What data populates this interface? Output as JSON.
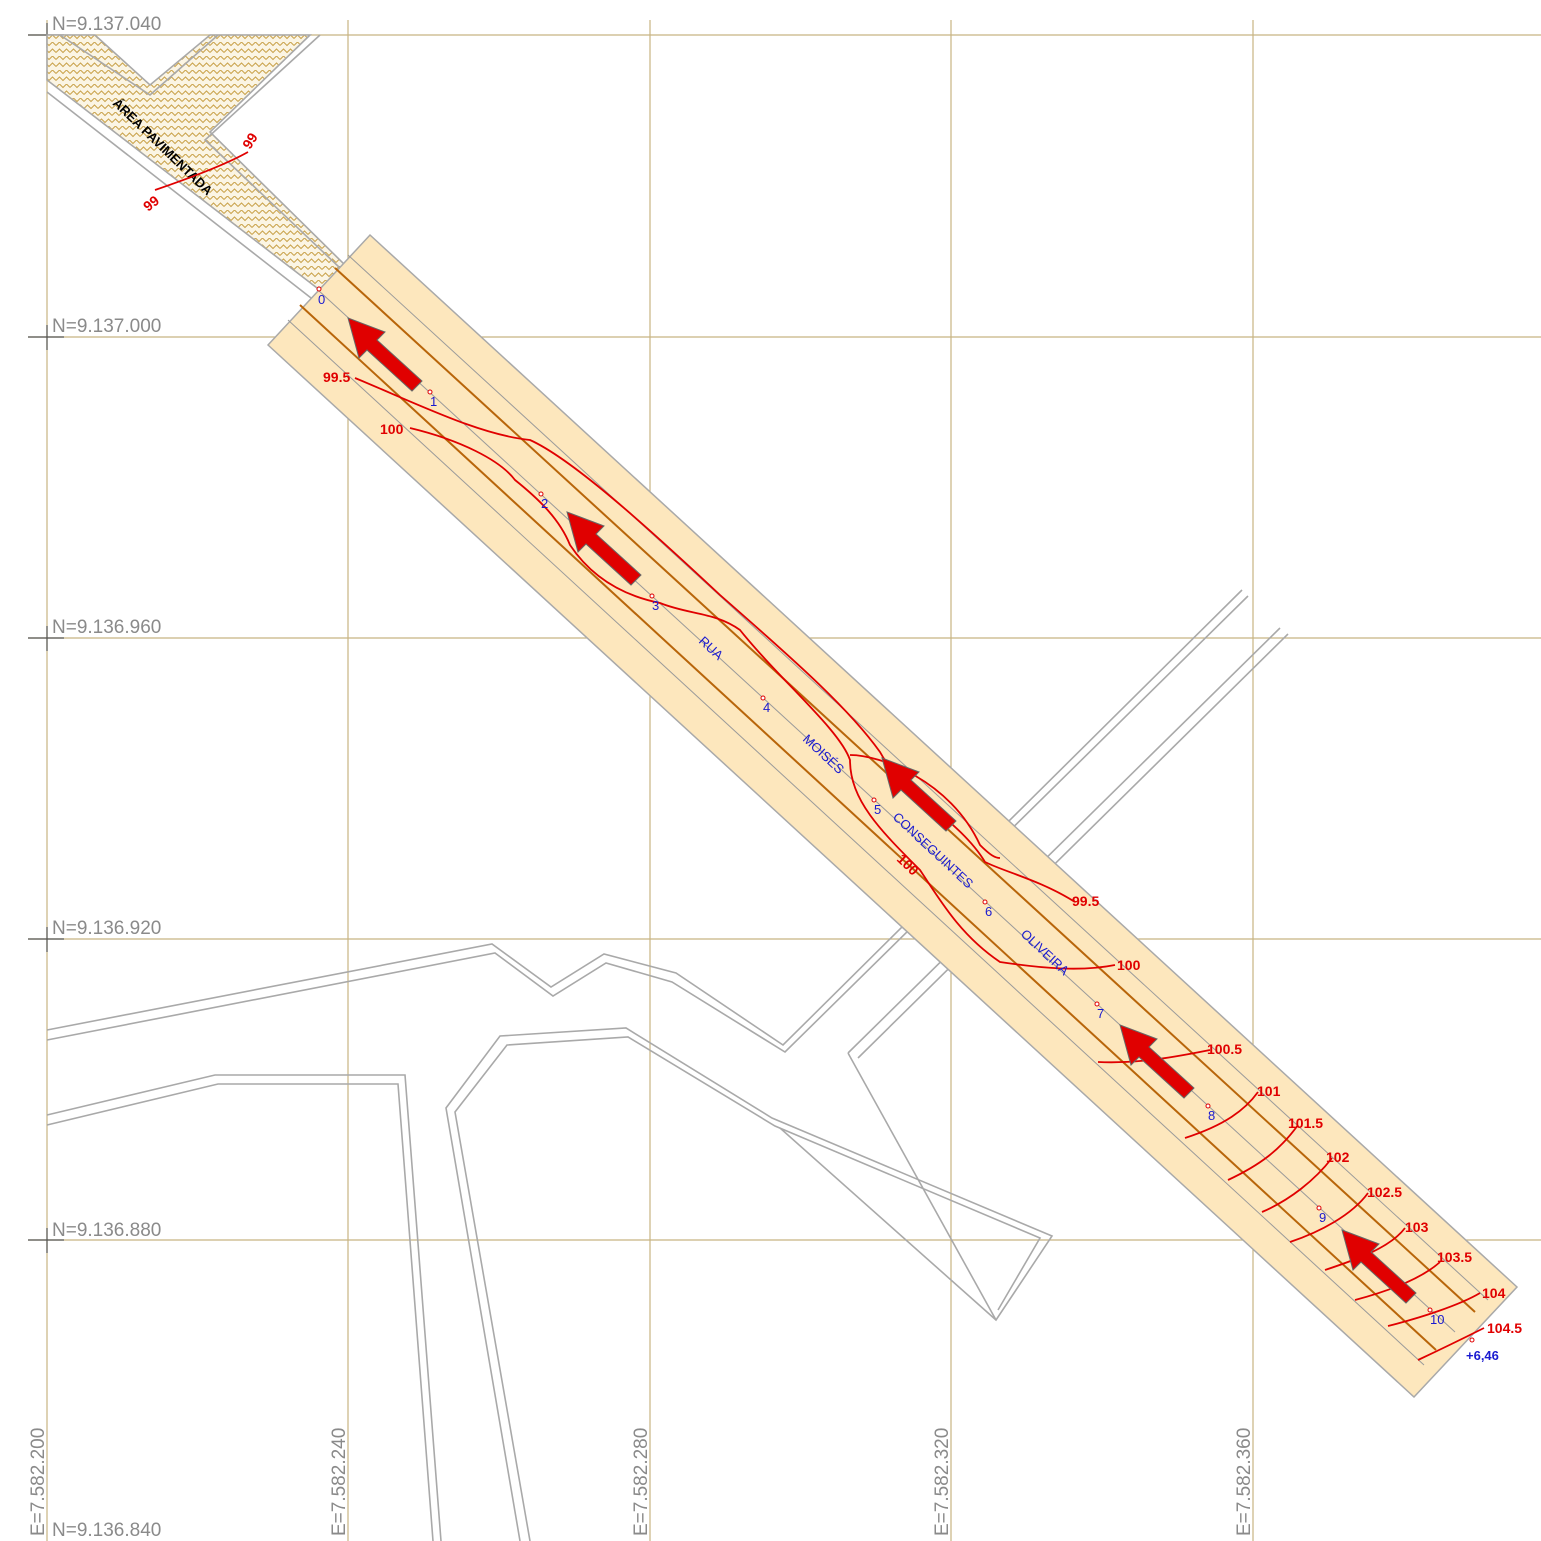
{
  "grid": {
    "northing_labels": [
      "N=9.137.040",
      "N=9.137.000",
      "N=9.136.960",
      "N=9.136.920",
      "N=9.136.880",
      "N=9.136.840"
    ],
    "easting_labels": [
      "E=7.582.200",
      "E=7.582.240",
      "E=7.582.280",
      "E=7.582.320",
      "E=7.582.360"
    ],
    "line_color": "#c8b482"
  },
  "paved_area": {
    "label": "ÁREA PAVIMENTADA"
  },
  "street": {
    "words": [
      "RUA",
      "MOISÉS",
      "CONSEGUINTES",
      "OLIVEIRA"
    ],
    "band_color": "#fde7bd",
    "edge_color": "#b8650a"
  },
  "stations": [
    "0",
    "1",
    "2",
    "3",
    "4",
    "5",
    "6",
    "7",
    "8",
    "9",
    "10",
    "+6,46"
  ],
  "contours": {
    "color": "#e00000",
    "labels": [
      "99",
      "99",
      "99.5",
      "100",
      "100",
      "99.5",
      "100",
      "100.5",
      "101",
      "101.5",
      "102",
      "102.5",
      "103",
      "103.5",
      "104",
      "104.5"
    ]
  },
  "flow_arrows": {
    "count": 5,
    "color": "#e00000",
    "direction": "northwest"
  }
}
